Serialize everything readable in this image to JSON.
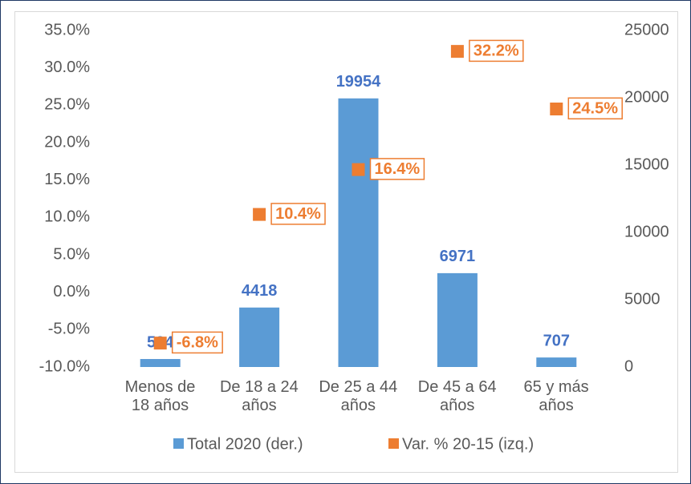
{
  "chart_data": {
    "type": "bar",
    "categories": [
      "Menos de\n18 años",
      "De 18 a 24\naños",
      "De 25 a 44\naños",
      "De 45 a 64\naños",
      "65 y más\naños"
    ],
    "series": [
      {
        "name": "Total 2020 (der.)",
        "type": "bar",
        "axis": "y2",
        "color": "#5b9bd5",
        "label_color": "#4472c4",
        "values": [
          594,
          4418,
          19954,
          6971,
          707
        ]
      },
      {
        "name": "Var. % 20-15 (izq.)",
        "type": "scatter",
        "color": "#ed7d31",
        "values": [
          -6.8,
          10.4,
          16.4,
          32.2,
          24.5
        ],
        "value_labels": [
          "-6.8%",
          "10.4%",
          "16.4%",
          "32.2%",
          "24.5%"
        ]
      }
    ],
    "ylim": [
      -10,
      35
    ],
    "yticks": [
      {
        "value": -10,
        "label": "-10.0%"
      },
      {
        "value": -5,
        "label": "-5.0%"
      },
      {
        "value": 0,
        "label": "0.0%"
      },
      {
        "value": 5,
        "label": "5.0%"
      },
      {
        "value": 10,
        "label": "10.0%"
      },
      {
        "value": 15,
        "label": "15.0%"
      },
      {
        "value": 20,
        "label": "20.0%"
      },
      {
        "value": 25,
        "label": "25.0%"
      },
      {
        "value": 30,
        "label": "30.0%"
      },
      {
        "value": 35,
        "label": "35.0%"
      }
    ],
    "y2lim": [
      0,
      25000
    ],
    "y2ticks": [
      0,
      5000,
      10000,
      15000,
      20000,
      25000
    ],
    "grid": false,
    "legend": "bottom"
  }
}
